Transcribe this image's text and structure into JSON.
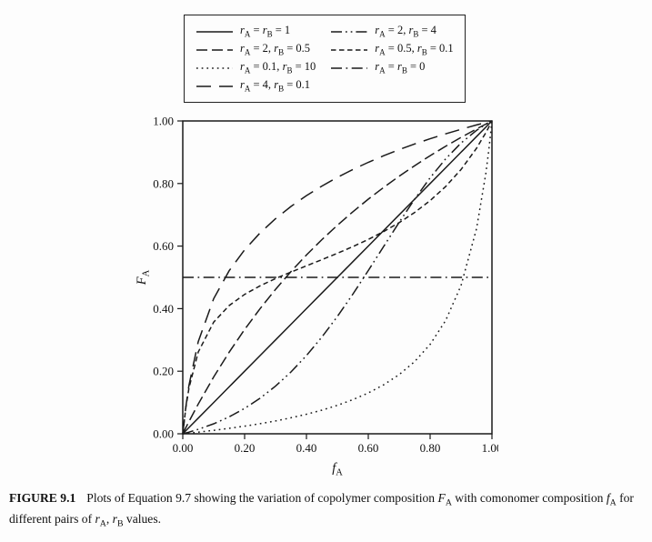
{
  "figure": {
    "caption_label": "FIGURE 9.1",
    "caption_text": "Plots of Equation 9.7 showing the variation of copolymer composition F_A with comonomer composition f_A for different pairs of r_A, r_B values."
  },
  "colors": {
    "line": "#1a1a1a",
    "text": "#111111",
    "background": "#fdfdfd"
  },
  "chart_data": {
    "type": "line",
    "title": "",
    "xlabel": "f_A",
    "ylabel": "F_A",
    "xlim": [
      0,
      1
    ],
    "ylim": [
      0,
      1
    ],
    "x_ticks": [
      0,
      0.2,
      0.4,
      0.6,
      0.8,
      1
    ],
    "y_ticks": [
      0,
      0.2,
      0.4,
      0.6,
      0.8,
      1
    ],
    "tick_label_format": "two-decimals",
    "grid": false,
    "legend_position": "top-outside-box",
    "legend_columns": 2,
    "x": [
      0,
      0.01,
      0.02,
      0.05,
      0.1,
      0.15,
      0.2,
      0.25,
      0.3,
      0.35,
      0.4,
      0.45,
      0.5,
      0.55,
      0.6,
      0.65,
      0.7,
      0.75,
      0.8,
      0.85,
      0.9,
      0.95,
      0.98,
      0.99,
      1
    ],
    "series": [
      {
        "name": "r_A = r_B = 1",
        "r_A": 1,
        "r_B": 1,
        "line_style": "solid",
        "values": [
          0,
          0.01,
          0.02,
          0.05,
          0.1,
          0.15,
          0.2,
          0.25,
          0.3,
          0.35,
          0.4,
          0.45,
          0.5,
          0.55,
          0.6,
          0.65,
          0.7,
          0.75,
          0.8,
          0.85,
          0.9,
          0.95,
          0.98,
          0.99,
          1
        ]
      },
      {
        "name": "r_A = 2, r_B = 0.5",
        "r_A": 2,
        "r_B": 0.5,
        "line_style": "long-dash",
        "values": [
          0,
          0.0198,
          0.0392,
          0.0952,
          0.1818,
          0.2609,
          0.3333,
          0.4,
          0.4615,
          0.5185,
          0.5714,
          0.6207,
          0.6667,
          0.7097,
          0.75,
          0.7879,
          0.8235,
          0.8571,
          0.8889,
          0.9189,
          0.9474,
          0.9744,
          0.9899,
          0.995,
          1
        ]
      },
      {
        "name": "r_A = 0.1, r_B = 10",
        "r_A": 0.1,
        "r_B": 10,
        "line_style": "dotted",
        "values": [
          0,
          0.001,
          0.002,
          0.0052,
          0.011,
          0.0173,
          0.0244,
          0.0323,
          0.0411,
          0.0511,
          0.0625,
          0.0756,
          0.0909,
          0.1089,
          0.1304,
          0.1566,
          0.1892,
          0.2308,
          0.2857,
          0.3617,
          0.4737,
          0.6552,
          0.8305,
          0.9083,
          1
        ]
      },
      {
        "name": "r_A = 4, r_B = 0.1",
        "r_A": 4,
        "r_B": 0.1,
        "line_style": "wide-dash",
        "values": [
          0,
          0.0871,
          0.1549,
          0.2945,
          0.4319,
          0.5213,
          0.5882,
          0.6422,
          0.6876,
          0.7268,
          0.7612,
          0.792,
          0.8197,
          0.8448,
          0.8678,
          0.8889,
          0.9083,
          0.9264,
          0.9431,
          0.9588,
          0.9734,
          0.9871,
          0.9949,
          0.9975,
          1
        ]
      },
      {
        "name": "r_A = 2, r_B = 4",
        "r_A": 2,
        "r_B": 4,
        "line_style": "dash-dot-dot",
        "values": [
          0,
          0.0026,
          0.0053,
          0.0142,
          0.032,
          0.0541,
          0.0811,
          0.1136,
          0.1523,
          0.1977,
          0.25,
          0.3093,
          0.375,
          0.4463,
          0.5217,
          0.5992,
          0.6761,
          0.75,
          0.8182,
          0.8785,
          0.9293,
          0.9699,
          0.9892,
          0.9948,
          1
        ]
      },
      {
        "name": "r_A = 0.5, r_B = 0.1",
        "r_A": 0.5,
        "r_B": 0.1,
        "line_style": "short-dash",
        "values": [
          0,
          0.0844,
          0.1462,
          0.2614,
          0.3571,
          0.4099,
          0.4455,
          0.473,
          0.4961,
          0.517,
          0.5369,
          0.5567,
          0.5769,
          0.5983,
          0.6213,
          0.6466,
          0.6751,
          0.7075,
          0.7453,
          0.7902,
          0.8447,
          0.9126,
          0.9622,
          0.9806,
          1
        ]
      },
      {
        "name": "r_A = r_B = 0",
        "r_A": 0,
        "r_B": 0,
        "line_style": "dash-dot",
        "values": [
          0.5,
          0.5,
          0.5,
          0.5,
          0.5,
          0.5,
          0.5,
          0.5,
          0.5,
          0.5,
          0.5,
          0.5,
          0.5,
          0.5,
          0.5,
          0.5,
          0.5,
          0.5,
          0.5,
          0.5,
          0.5,
          0.5,
          0.5,
          0.5,
          0.5
        ]
      }
    ]
  }
}
